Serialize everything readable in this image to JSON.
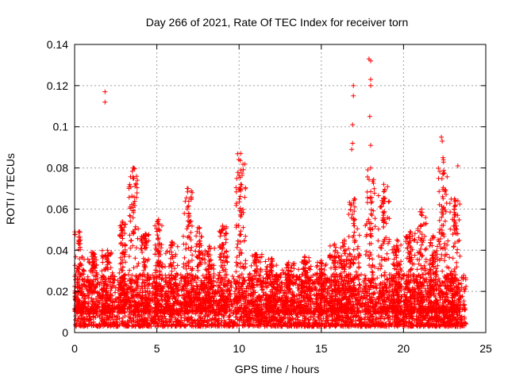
{
  "chart_data": {
    "type": "scatter",
    "title": "Day 266 of 2021, Rate Of TEC Index for receiver torn",
    "xlabel": "GPS time / hours",
    "ylabel": "ROTI / TECUs",
    "xlim": [
      0,
      25
    ],
    "ylim": [
      0,
      0.14
    ],
    "xticks": [
      "0",
      "5",
      "10",
      "15",
      "20",
      "25"
    ],
    "yticks": [
      "0",
      "0.02",
      "0.04",
      "0.06",
      "0.08",
      "0.1",
      "0.12",
      "0.14"
    ],
    "grid": true,
    "marker": "+",
    "color": "#ff0000",
    "data_extent_hours": [
      0,
      23.8
    ],
    "baseline_range": [
      0.003,
      0.025
    ],
    "notable_points": [
      {
        "x": 1.85,
        "y": 0.117
      },
      {
        "x": 1.85,
        "y": 0.112
      },
      {
        "x": 3.55,
        "y": 0.08
      },
      {
        "x": 3.6,
        "y": 0.075
      },
      {
        "x": 6.85,
        "y": 0.07
      },
      {
        "x": 6.85,
        "y": 0.06
      },
      {
        "x": 10.1,
        "y": 0.087
      },
      {
        "x": 10.1,
        "y": 0.079
      },
      {
        "x": 16.95,
        "y": 0.12
      },
      {
        "x": 16.95,
        "y": 0.115
      },
      {
        "x": 16.9,
        "y": 0.101
      },
      {
        "x": 16.9,
        "y": 0.092
      },
      {
        "x": 16.85,
        "y": 0.089
      },
      {
        "x": 17.9,
        "y": 0.133
      },
      {
        "x": 18.0,
        "y": 0.132
      },
      {
        "x": 18.0,
        "y": 0.123
      },
      {
        "x": 18.0,
        "y": 0.12
      },
      {
        "x": 17.95,
        "y": 0.105
      },
      {
        "x": 18.0,
        "y": 0.091
      },
      {
        "x": 22.3,
        "y": 0.095
      },
      {
        "x": 22.35,
        "y": 0.093
      },
      {
        "x": 23.3,
        "y": 0.081
      }
    ],
    "clusters": [
      {
        "x_center": 0.3,
        "width": 0.6,
        "peak": 0.049
      },
      {
        "x_center": 1.1,
        "width": 0.6,
        "peak": 0.039
      },
      {
        "x_center": 2.0,
        "width": 0.7,
        "peak": 0.04
      },
      {
        "x_center": 2.9,
        "width": 0.4,
        "peak": 0.054
      },
      {
        "x_center": 3.6,
        "width": 0.6,
        "peak": 0.08
      },
      {
        "x_center": 4.3,
        "width": 0.6,
        "peak": 0.048
      },
      {
        "x_center": 5.1,
        "width": 0.5,
        "peak": 0.055
      },
      {
        "x_center": 5.9,
        "width": 0.8,
        "peak": 0.044
      },
      {
        "x_center": 6.9,
        "width": 0.6,
        "peak": 0.07
      },
      {
        "x_center": 7.6,
        "width": 0.5,
        "peak": 0.051
      },
      {
        "x_center": 8.2,
        "width": 0.6,
        "peak": 0.042
      },
      {
        "x_center": 9.0,
        "width": 0.6,
        "peak": 0.052
      },
      {
        "x_center": 10.1,
        "width": 0.6,
        "peak": 0.087
      },
      {
        "x_center": 11.0,
        "width": 0.8,
        "peak": 0.038
      },
      {
        "x_center": 12.0,
        "width": 0.8,
        "peak": 0.036
      },
      {
        "x_center": 13.0,
        "width": 0.8,
        "peak": 0.034
      },
      {
        "x_center": 14.0,
        "width": 0.8,
        "peak": 0.037
      },
      {
        "x_center": 15.0,
        "width": 0.8,
        "peak": 0.035
      },
      {
        "x_center": 15.8,
        "width": 0.6,
        "peak": 0.043
      },
      {
        "x_center": 16.4,
        "width": 0.5,
        "peak": 0.045
      },
      {
        "x_center": 17.0,
        "width": 0.7,
        "peak": 0.065
      },
      {
        "x_center": 18.0,
        "width": 0.7,
        "peak": 0.08
      },
      {
        "x_center": 18.8,
        "width": 0.7,
        "peak": 0.072
      },
      {
        "x_center": 19.6,
        "width": 0.6,
        "peak": 0.045
      },
      {
        "x_center": 20.4,
        "width": 0.6,
        "peak": 0.049
      },
      {
        "x_center": 21.1,
        "width": 0.6,
        "peak": 0.06
      },
      {
        "x_center": 21.8,
        "width": 0.6,
        "peak": 0.047
      },
      {
        "x_center": 22.4,
        "width": 0.6,
        "peak": 0.085
      },
      {
        "x_center": 23.1,
        "width": 0.7,
        "peak": 0.065
      }
    ]
  }
}
